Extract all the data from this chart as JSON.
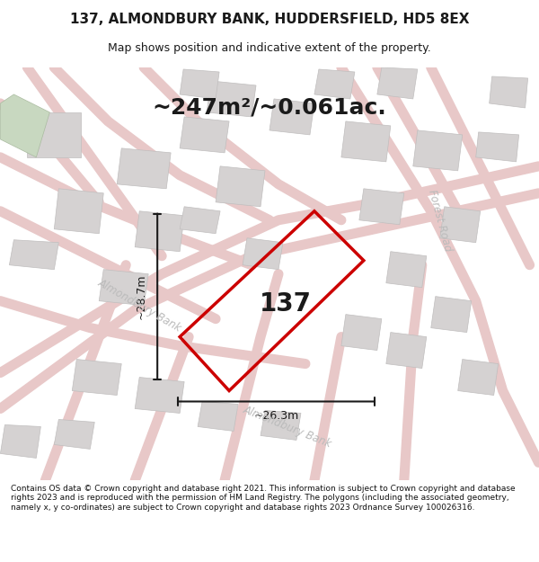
{
  "title_line1": "137, ALMONDBURY BANK, HUDDERSFIELD, HD5 8EX",
  "title_line2": "Map shows position and indicative extent of the property.",
  "area_text": "~247m²/~0.061ac.",
  "property_number": "137",
  "dimension_height": "~28.7m",
  "dimension_width": "~26.3m",
  "road_label_left": "Almondbury Bank",
  "road_label_right": "Forest Road",
  "road_label_left2": "Almondbury Bank",
  "footer_text": "Contains OS data © Crown copyright and database right 2021. This information is subject to Crown copyright and database rights 2023 and is reproduced with the permission of HM Land Registry. The polygons (including the associated geometry, namely x, y co-ordinates) are subject to Crown copyright and database rights 2023 Ordnance Survey 100026316.",
  "bg_color": "#f0eeee",
  "map_bg": "#f5f3f3",
  "block_color": "#d8d5d5",
  "road_color": "#ffffff",
  "plot_outline_color": "#cc0000",
  "dim_line_color": "#1a1a1a",
  "text_color": "#1a1a1a",
  "road_text_color": "#aaaaaa",
  "footer_bg": "#ffffff"
}
